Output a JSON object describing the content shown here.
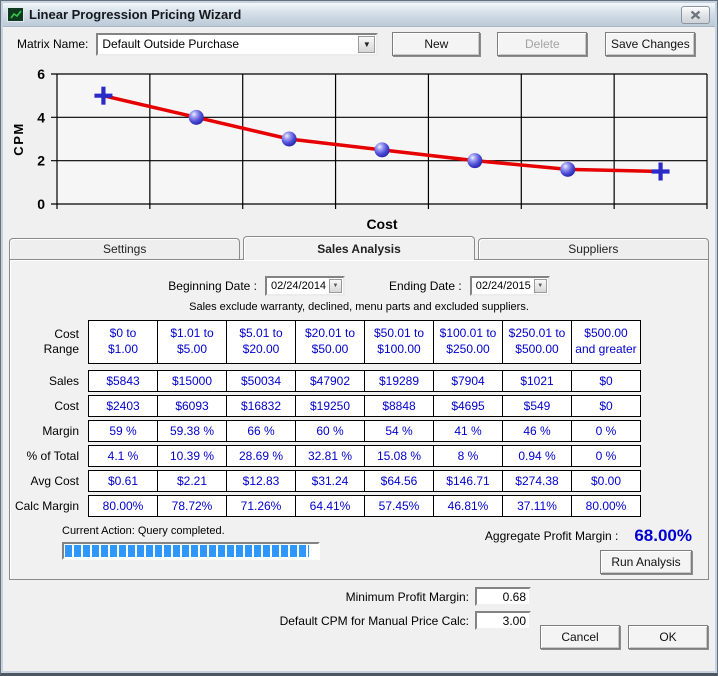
{
  "window": {
    "title": "Linear Progression Pricing Wizard"
  },
  "icons": {
    "dropdown_arrow": "▼",
    "app_icon": "line-chart-glyph",
    "close": "close-x"
  },
  "toolbar": {
    "matrix_name_label": "Matrix Name:",
    "matrix_name_value": "Default Outside Purchase",
    "new_label": "New",
    "delete_label": "Delete",
    "save_label": "Save Changes"
  },
  "chart_data": {
    "type": "line",
    "title": "",
    "xlabel": "Cost",
    "ylabel": "CPM",
    "ylim": [
      0,
      6
    ],
    "yticks": [
      0,
      2,
      4,
      6
    ],
    "x": [
      1,
      2,
      3,
      4,
      5,
      6,
      7
    ],
    "values": [
      5,
      4,
      3,
      2.5,
      2,
      1.6,
      1.5
    ],
    "markers": [
      "plus",
      "sphere",
      "sphere",
      "sphere",
      "sphere",
      "sphere",
      "plus"
    ],
    "grid": true,
    "legend_position": "none",
    "line_color": "#e60000",
    "marker_color": "#3a3ac8"
  },
  "tabs": [
    {
      "label": "Settings",
      "active": false
    },
    {
      "label": "Sales Analysis",
      "active": true
    },
    {
      "label": "Suppliers",
      "active": false
    }
  ],
  "sales_analysis": {
    "beginning_date_label": "Beginning Date :",
    "beginning_date": "02/24/2014",
    "ending_date_label": "Ending Date :",
    "ending_date": "02/24/2015",
    "note": "Sales exclude warranty, declined, menu parts and excluded suppliers.",
    "table": {
      "row_header_label": "Cost\nRange",
      "cost_ranges": [
        [
          "$0 to",
          "$1.00"
        ],
        [
          "$1.01 to",
          "$5.00"
        ],
        [
          "$5.01 to",
          "$20.00"
        ],
        [
          "$20.01 to",
          "$50.00"
        ],
        [
          "$50.01 to",
          "$100.00"
        ],
        [
          "$100.01 to",
          "$250.00"
        ],
        [
          "$250.01 to",
          "$500.00"
        ],
        [
          "$500.00",
          "and greater"
        ]
      ],
      "rows": [
        {
          "label": "Sales",
          "values": [
            "$5843",
            "$15000",
            "$50034",
            "$47902",
            "$19289",
            "$7904",
            "$1021",
            "$0"
          ]
        },
        {
          "label": "Cost",
          "values": [
            "$2403",
            "$6093",
            "$16832",
            "$19250",
            "$8848",
            "$4695",
            "$549",
            "$0"
          ]
        },
        {
          "label": "Margin",
          "values": [
            "59 %",
            "59.38 %",
            "66 %",
            "60 %",
            "54 %",
            "41 %",
            "46 %",
            "0 %"
          ]
        },
        {
          "label": "% of Total",
          "values": [
            "4.1 %",
            "10.39 %",
            "28.69 %",
            "32.81 %",
            "15.08 %",
            "8 %",
            "0.94 %",
            "0 %"
          ]
        },
        {
          "label": "Avg Cost",
          "values": [
            "$0.61",
            "$2.21",
            "$12.83",
            "$31.24",
            "$64.56",
            "$146.71",
            "$274.38",
            "$0.00"
          ]
        },
        {
          "label": "Calc Margin",
          "values": [
            "80.00%",
            "78.72%",
            "71.26%",
            "64.41%",
            "57.45%",
            "46.81%",
            "37.11%",
            "80.00%"
          ]
        }
      ]
    },
    "status": {
      "current_action": "Current Action: Query completed.",
      "progress_percent": 97
    },
    "aggregate_label": "Aggregate Profit Margin :",
    "aggregate_value": "68.00%",
    "run_analysis_label": "Run Analysis"
  },
  "footer": {
    "min_margin_label": "Minimum Profit Margin:",
    "min_margin_value": "0.68",
    "default_cpm_label": "Default CPM for Manual Price Calc:",
    "default_cpm_value": "3.00",
    "cancel_label": "Cancel",
    "ok_label": "OK"
  },
  "colors": {
    "table_text": "#0000cd",
    "aggregate_value": "#0000d4",
    "progress_blue": "#2f96fb",
    "chart_line": "#e60000",
    "chart_marker": "#3a3ac8"
  }
}
